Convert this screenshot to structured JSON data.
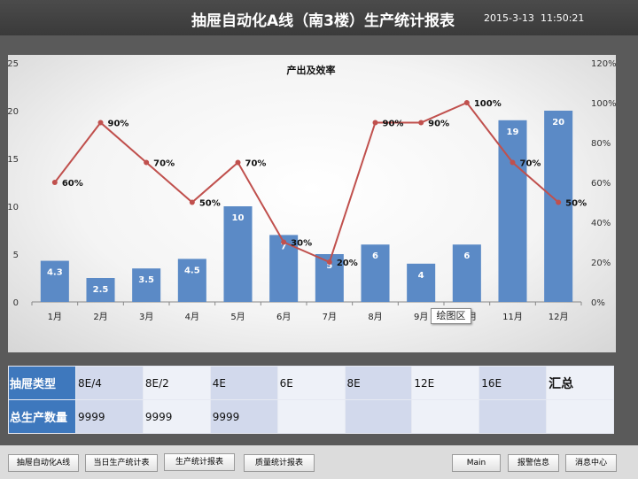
{
  "header": {
    "title": "抽屉自动化A线（南3楼）生产统计报表",
    "date": "2015-3-13",
    "time": "11:50:21"
  },
  "chart_data": {
    "type": "bar",
    "title": "产出及效率",
    "categories": [
      "1月",
      "2月",
      "3月",
      "4月",
      "5月",
      "6月",
      "7月",
      "8月",
      "9月",
      "10月",
      "11月",
      "12月"
    ],
    "series": [
      {
        "type": "bar",
        "axis": "left",
        "values": [
          4.3,
          2.5,
          3.5,
          4.5,
          10,
          7,
          5,
          6,
          4,
          6,
          19,
          20
        ],
        "color": "#5b8ac6"
      },
      {
        "type": "line",
        "axis": "right",
        "values": [
          60,
          90,
          70,
          50,
          70,
          30,
          20,
          90,
          90,
          100,
          70,
          50
        ],
        "color": "#c0504d"
      }
    ],
    "y_left": {
      "min": 0,
      "max": 25,
      "ticks": [
        "0",
        "5",
        "10",
        "15",
        "20",
        "25"
      ]
    },
    "y_right": {
      "min": 0,
      "max": 120,
      "ticks": [
        "0%",
        "20%",
        "40%",
        "60%",
        "80%",
        "100%",
        "120%"
      ]
    },
    "bar_labels": [
      "4.3",
      "2.5",
      "3.5",
      "4.5",
      "10",
      "7",
      "5",
      "6",
      "4",
      "6",
      "19",
      "20"
    ],
    "line_labels": [
      "60%",
      "90%",
      "70%",
      "50%",
      "70%",
      "30%",
      "20%",
      "90%",
      "90%",
      "100%",
      "70%",
      "50%"
    ],
    "tooltip": "绘图区"
  },
  "table": {
    "row1_header": "抽屉类型",
    "types": [
      "8E/4",
      "8E/2",
      "4E",
      "6E",
      "8E",
      "12E",
      "16E"
    ],
    "total_label": "汇总",
    "row2_header": "总生产数量",
    "quantities": [
      "9999",
      "9999",
      "9999",
      "",
      "",
      "",
      ""
    ],
    "total_quantity": ""
  },
  "footer": {
    "btn_line": "抽屉自动化A线",
    "btn_daily": "当日生产统计表",
    "btn_production": "生产统计报表",
    "btn_quality": "质量统计报表",
    "btn_main": "Main",
    "btn_alarm": "报警信息",
    "btn_message": "消息中心"
  }
}
